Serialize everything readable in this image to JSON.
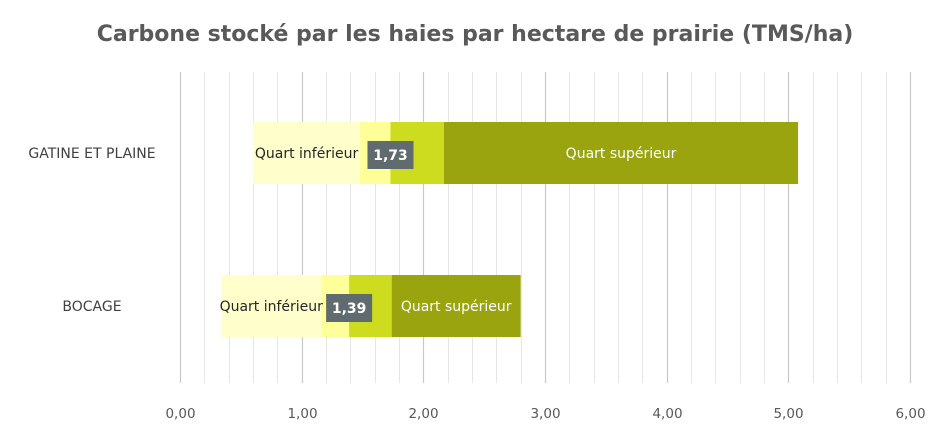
{
  "chart_data": {
    "type": "bar",
    "orientation": "horizontal",
    "stacked": true,
    "title": "Carbone stocké par les haies par hectare de prairie (TMS/ha)",
    "xlabel": "",
    "ylabel": "",
    "xlim": [
      0,
      6
    ],
    "x_ticks": [
      "0,00",
      "1,00",
      "2,00",
      "3,00",
      "4,00",
      "5,00",
      "6,00"
    ],
    "grid": "vertical major and minor gridlines",
    "legend": "none",
    "categories": [
      "GATINE ET PLAINE",
      "BOCAGE"
    ],
    "rows": [
      {
        "category": "GATINE ET PLAINE",
        "segments": [
          {
            "from": 0.6,
            "to": 1.48,
            "color": "#ffffcc",
            "label": "Quart inférieur",
            "label_color": "#262626"
          },
          {
            "from": 1.48,
            "to": 1.73,
            "color": "#ffff99",
            "label": ""
          },
          {
            "from": 1.73,
            "to": 2.17,
            "color": "#cddc1f",
            "label": ""
          },
          {
            "from": 2.17,
            "to": 5.08,
            "color": "#99a40f",
            "label": "Quart supérieur",
            "label_color": "#ffffff"
          }
        ],
        "median": 1.73,
        "median_label": "1,73"
      },
      {
        "category": "BOCAGE",
        "segments": [
          {
            "from": 0.34,
            "to": 1.16,
            "color": "#ffffcc",
            "label": "Quart inférieur",
            "label_color": "#262626"
          },
          {
            "from": 1.16,
            "to": 1.39,
            "color": "#ffff99",
            "label": ""
          },
          {
            "from": 1.39,
            "to": 1.74,
            "color": "#cddc1f",
            "label": ""
          },
          {
            "from": 1.74,
            "to": 2.8,
            "color": "#99a40f",
            "label": "Quart supérieur",
            "label_color": "#ffffff"
          }
        ],
        "median": 1.39,
        "median_label": "1,39"
      }
    ],
    "colors": {
      "grid_major": "#c8c8c8",
      "grid_minor": "#e6e6e6",
      "median_box": "#5f6b6e"
    }
  }
}
